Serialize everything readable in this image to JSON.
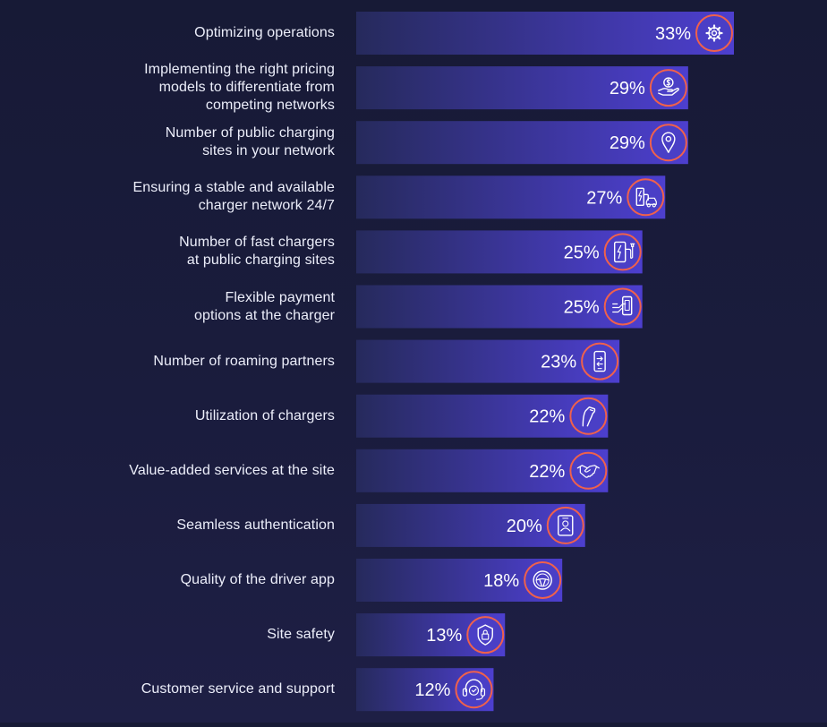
{
  "chart_data": {
    "type": "bar",
    "orientation": "horizontal",
    "categories": [
      "Optimizing operations",
      "Implementing the right pricing models to differentiate from competing networks",
      "Number of public charging sites in your network",
      "Ensuring a stable and available charger network 24/7",
      "Number of fast chargers at public charging sites",
      "Flexible payment options at the charger",
      "Number of roaming partners",
      "Utilization of chargers",
      "Value-added services at the site",
      "Seamless authentication",
      "Quality of the driver app",
      "Site safety",
      "Customer service and support"
    ],
    "label_lines": [
      [
        "Optimizing operations"
      ],
      [
        "Implementing the right pricing",
        "models to differentiate from",
        "competing networks"
      ],
      [
        "Number of public charging",
        "sites in your network"
      ],
      [
        "Ensuring a stable and available",
        "charger network 24/7"
      ],
      [
        "Number of fast chargers",
        "at public charging sites"
      ],
      [
        "Flexible payment",
        "options at the charger"
      ],
      [
        "Number of roaming partners"
      ],
      [
        "Utilization of chargers"
      ],
      [
        "Value-added services at the site"
      ],
      [
        "Seamless authentication"
      ],
      [
        "Quality of the driver app"
      ],
      [
        "Site safety"
      ],
      [
        "Customer service and support"
      ]
    ],
    "values": [
      33,
      29,
      29,
      27,
      25,
      25,
      23,
      22,
      22,
      20,
      18,
      13,
      12
    ],
    "value_labels": [
      "33%",
      "29%",
      "29%",
      "27%",
      "25%",
      "25%",
      "23%",
      "22%",
      "22%",
      "20%",
      "18%",
      "13%",
      "12%"
    ],
    "icons": [
      "gear-icon",
      "money-hand-icon",
      "location-pin-icon",
      "charging-station-icon",
      "fast-charger-icon",
      "card-payment-icon",
      "roaming-phone-icon",
      "charging-plug-icon",
      "handshake-icon",
      "id-badge-icon",
      "steering-wheel-icon",
      "shield-lock-icon",
      "headset-icon"
    ],
    "xlim": [
      0,
      33
    ],
    "grid": false,
    "legend": "none",
    "colors": {
      "background": "#1a1c3d",
      "bar_start": "#262a5c",
      "bar_end": "#4d3fcf",
      "icon_ring": "#f0614b",
      "icon_fill": "#4a3fc6",
      "text": "#ffffff"
    }
  }
}
